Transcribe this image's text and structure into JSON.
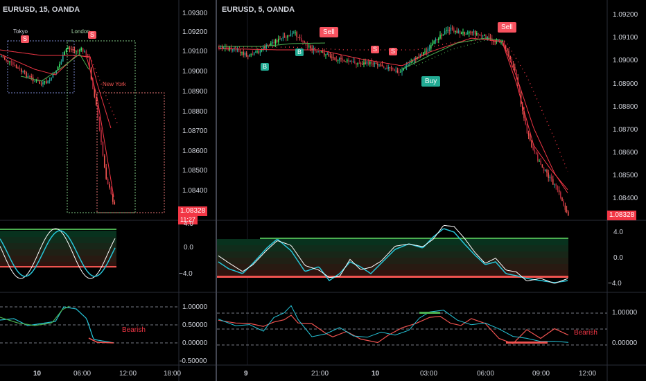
{
  "left_chart": {
    "title": "EURUSD, 15, OANDA",
    "price_ticks": [
      "1.09300",
      "1.09200",
      "1.09100",
      "1.09000",
      "1.08900",
      "1.08800",
      "1.08700",
      "1.08600",
      "1.08500",
      "1.08400"
    ],
    "price_tag": "1.08328",
    "countdown": "11:27",
    "sessions": {
      "tokyo": "Tokyo",
      "london": "London",
      "new_york": "New York"
    },
    "signals": {
      "s1": "S",
      "s2": "S"
    },
    "osc_ticks": [
      "4.0",
      "0.0",
      "−4.0"
    ],
    "strength_ticks": [
      "1.00000",
      "0.50000",
      "0.00000",
      "-0.50000"
    ],
    "strength_label": "Bearish",
    "time_ticks": [
      "10",
      "06:00",
      "12:00",
      "18:00"
    ]
  },
  "right_chart": {
    "title": "EURUSD, 5, OANDA",
    "price_ticks": [
      "1.09200",
      "1.09100",
      "1.09000",
      "1.08900",
      "1.08800",
      "1.08700",
      "1.08600",
      "1.08500",
      "1.08400"
    ],
    "price_tag": "1.08328",
    "signals": {
      "sell_1": "Sell",
      "sell_2": "Sell",
      "buy_1": "Buy",
      "b1": "B",
      "b2": "B",
      "s1": "S",
      "s2": "S"
    },
    "osc_ticks": [
      "4.0",
      "0.0",
      "−4.0"
    ],
    "strength_ticks": [
      "1.00000",
      "0.00000"
    ],
    "strength_label": "Bearish",
    "time_ticks": [
      "9",
      "21:00",
      "10",
      "03:00",
      "06:00",
      "09:00",
      "12:00"
    ]
  },
  "colors": {
    "bull": "#26a69a",
    "bull_bright": "#3cf06e",
    "bear": "#ef5350",
    "bear_dark": "#b2283a",
    "ema_green": "#4caf50",
    "ema_red": "#f23645",
    "cyan": "#26c6da",
    "white_line": "#ffffff"
  }
}
